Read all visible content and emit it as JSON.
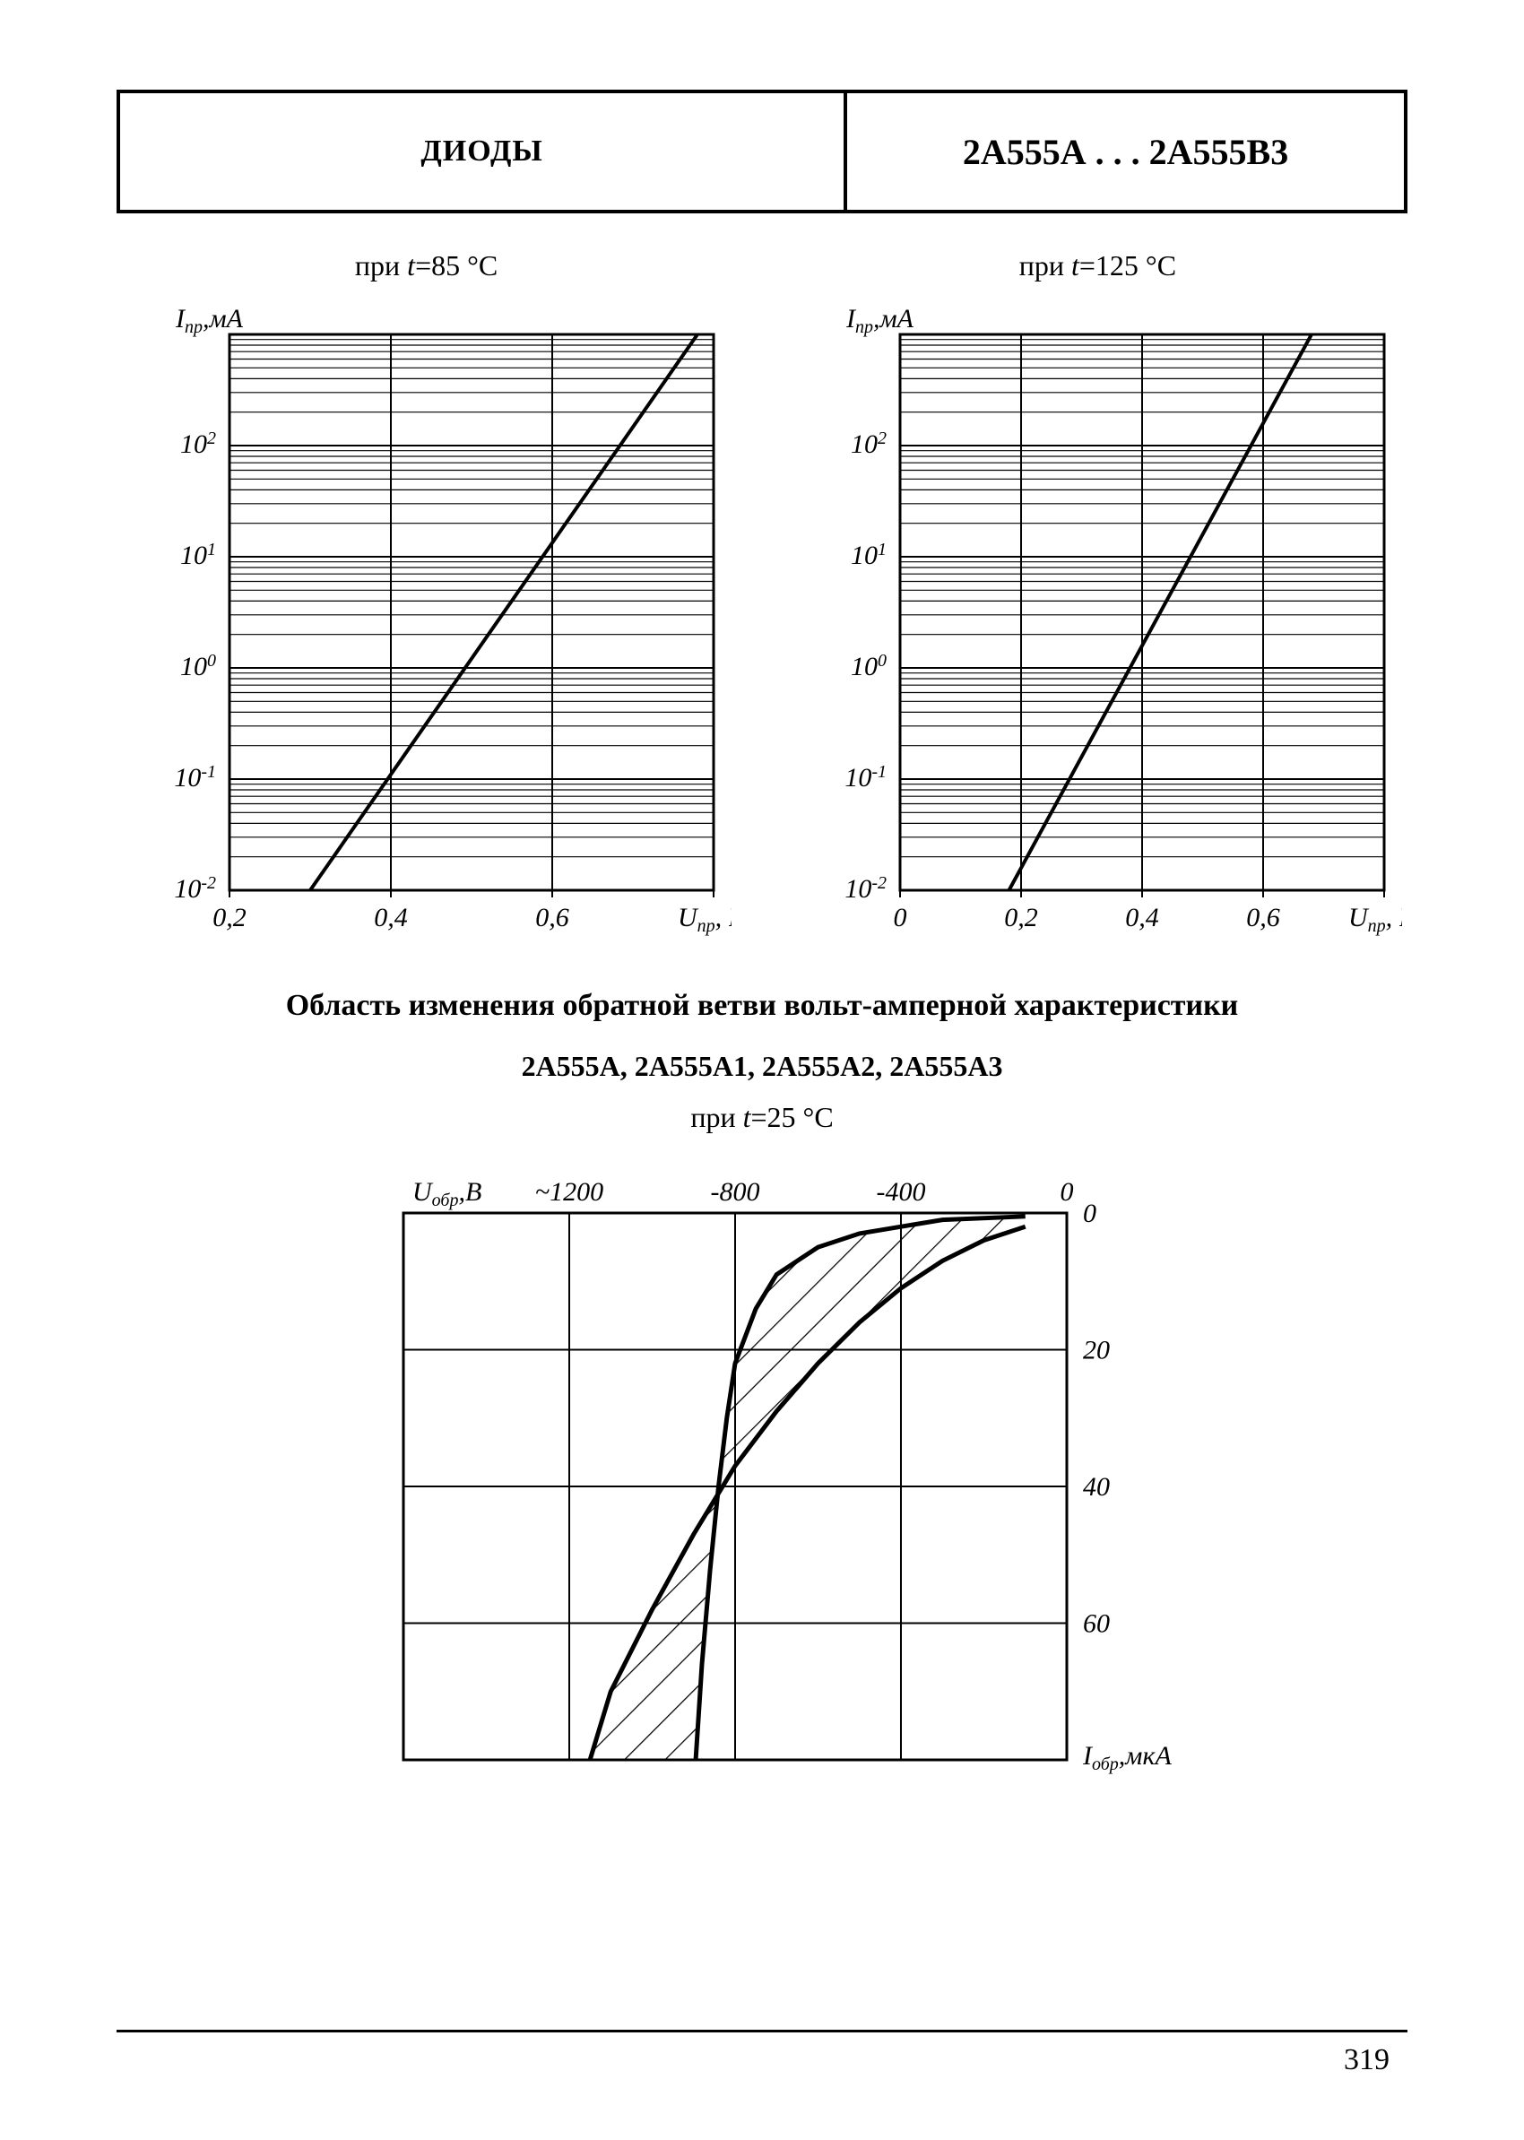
{
  "header": {
    "left": "ДИОДЫ",
    "right": "2А555А . . . 2А555В3"
  },
  "chart85": {
    "caption_prefix": "при ",
    "caption_var": "t",
    "caption_suffix": "=85 °C",
    "ylabel": "I",
    "ylabel_sub": "пр",
    "ylabel_unit": ",мА",
    "xlabel": "U",
    "xlabel_sub": "пр",
    "xlabel_unit": ", В",
    "xticks": [
      "0,2",
      "0,4",
      "0,6"
    ],
    "yticks": [
      "10",
      "10",
      "10",
      "10",
      "10"
    ],
    "yexp": [
      "-2",
      "-1",
      "0",
      "1",
      "2"
    ],
    "xmin": 0.2,
    "xmax": 0.8,
    "ymin_exp": -2,
    "ymax_exp": 3,
    "line": [
      [
        0.3,
        -2
      ],
      [
        0.78,
        3
      ]
    ],
    "line_width": 4,
    "grid_color": "#000000",
    "bg": "#ffffff"
  },
  "chart125": {
    "caption_prefix": "при ",
    "caption_var": "t",
    "caption_suffix": "=125 °C",
    "ylabel": "I",
    "ylabel_sub": "пр",
    "ylabel_unit": ",мА",
    "xlabel": "U",
    "xlabel_sub": "пр",
    "xlabel_unit": ", В",
    "xticks": [
      "0",
      "0,2",
      "0,4",
      "0,6"
    ],
    "yticks": [
      "10",
      "10",
      "10",
      "10",
      "10"
    ],
    "yexp": [
      "-2",
      "-1",
      "0",
      "1",
      "2"
    ],
    "xmin": 0.0,
    "xmax": 0.8,
    "ymin_exp": -2,
    "ymax_exp": 3,
    "line": [
      [
        0.18,
        -2
      ],
      [
        0.68,
        3
      ]
    ],
    "line_width": 4,
    "grid_color": "#000000",
    "bg": "#ffffff"
  },
  "section": {
    "title": "Область изменения обратной ветви вольт-амперной характеристики",
    "sub": "2А555А, 2А555А1, 2А555А2, 2А555А3"
  },
  "chartRev": {
    "caption_prefix": "при ",
    "caption_var": "t",
    "caption_suffix": "=25 °C",
    "xlabel": "U",
    "xlabel_sub": "обр",
    "xlabel_unit": ",В",
    "ylabel": "I",
    "ylabel_sub": "обр",
    "ylabel_unit": ",мкА",
    "xticks": [
      "-1200",
      "-800",
      "-400",
      "0"
    ],
    "xtick_label_first": "~1200",
    "yticks": [
      "0",
      "20",
      "40",
      "60"
    ],
    "xmin": -1600,
    "xmax": 0,
    "ymin": 0,
    "ymax": 80,
    "upper": [
      [
        -100,
        2
      ],
      [
        -200,
        4
      ],
      [
        -300,
        7
      ],
      [
        -400,
        11
      ],
      [
        -500,
        16
      ],
      [
        -600,
        22
      ],
      [
        -700,
        29
      ],
      [
        -800,
        37
      ],
      [
        -900,
        47
      ],
      [
        -1000,
        58
      ],
      [
        -1100,
        70
      ],
      [
        -1150,
        80
      ]
    ],
    "lower": [
      [
        -100,
        0.5
      ],
      [
        -300,
        1
      ],
      [
        -500,
        3
      ],
      [
        -600,
        5
      ],
      [
        -700,
        9
      ],
      [
        -750,
        14
      ],
      [
        -800,
        22
      ],
      [
        -820,
        30
      ],
      [
        -840,
        40
      ],
      [
        -860,
        52
      ],
      [
        -880,
        66
      ],
      [
        -895,
        80
      ]
    ],
    "hatch_spacing": 32,
    "line_width": 5,
    "grid_color": "#000000",
    "bg": "#ffffff"
  },
  "page_number": "319"
}
